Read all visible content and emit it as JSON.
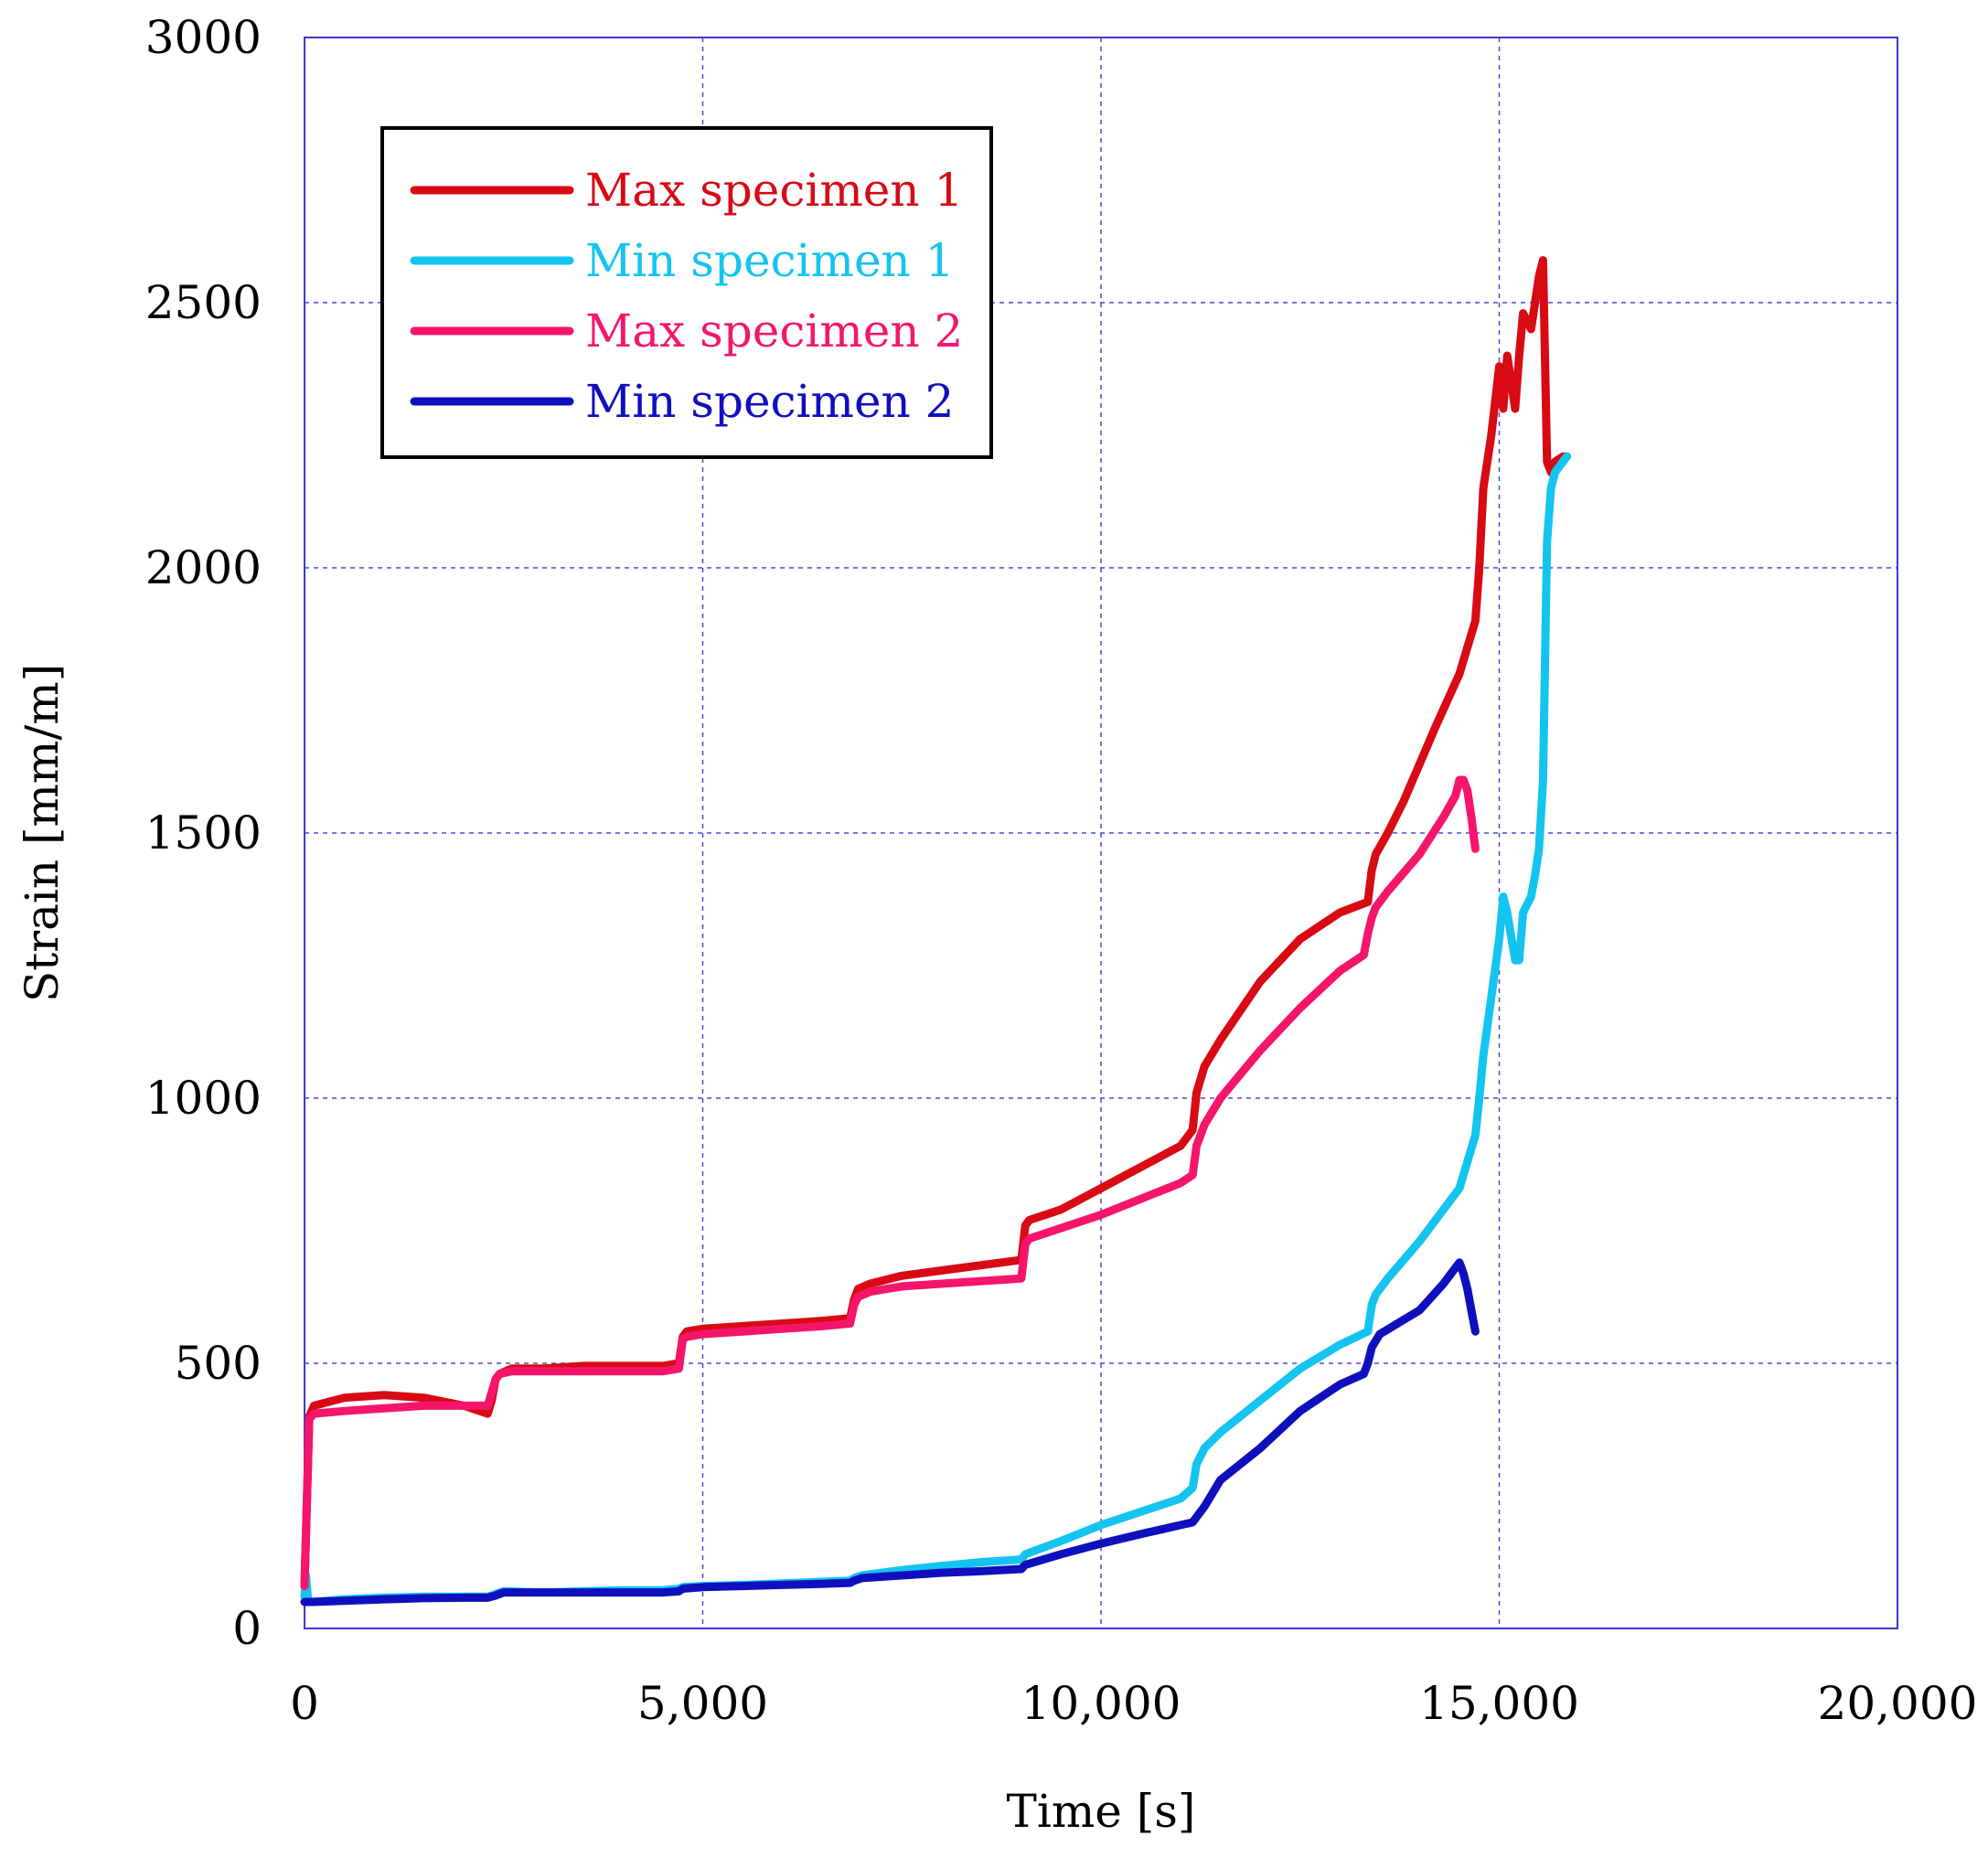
{
  "chart_data": {
    "type": "line",
    "xlabel": "Time [s]",
    "ylabel": "Strain [mm/m]",
    "xlim": [
      0,
      20000
    ],
    "ylim": [
      0,
      3000
    ],
    "x_ticks": [
      {
        "value": 0,
        "label": "0"
      },
      {
        "value": 5000,
        "label": "5,000"
      },
      {
        "value": 10000,
        "label": "10,000"
      },
      {
        "value": 15000,
        "label": "15,000"
      },
      {
        "value": 20000,
        "label": "20,000"
      }
    ],
    "y_ticks": [
      {
        "value": 0,
        "label": "0"
      },
      {
        "value": 500,
        "label": "500"
      },
      {
        "value": 1000,
        "label": "1000"
      },
      {
        "value": 1500,
        "label": "1500"
      },
      {
        "value": 2000,
        "label": "2000"
      },
      {
        "value": 2500,
        "label": "2500"
      },
      {
        "value": 3000,
        "label": "3000"
      }
    ],
    "grid": true,
    "legend_position": "top-left",
    "series": [
      {
        "name": "Max specimen 1",
        "color": "#d80a14",
        "x": [
          0,
          60,
          120,
          500,
          1000,
          1500,
          2000,
          2300,
          2350,
          2400,
          2450,
          2600,
          3000,
          3500,
          4000,
          4500,
          4700,
          4750,
          4800,
          5000,
          5500,
          6000,
          6500,
          6850,
          6900,
          6950,
          7100,
          7500,
          8000,
          8500,
          9000,
          9050,
          9100,
          9500,
          10000,
          10500,
          11000,
          11150,
          11200,
          11300,
          11500,
          12000,
          12500,
          13000,
          13350,
          13400,
          13450,
          13600,
          13800,
          14000,
          14200,
          14500,
          14700,
          14750,
          14800,
          14900,
          15000,
          15050,
          15100,
          15150,
          15200,
          15250,
          15300,
          15400,
          15500,
          15550,
          15600,
          15650,
          15700,
          15800,
          15850
        ],
        "values": [
          80,
          400,
          420,
          435,
          440,
          435,
          420,
          405,
          430,
          470,
          480,
          490,
          490,
          495,
          495,
          495,
          500,
          550,
          560,
          565,
          570,
          575,
          580,
          585,
          620,
          640,
          650,
          665,
          675,
          685,
          695,
          760,
          770,
          790,
          830,
          870,
          910,
          940,
          1010,
          1060,
          1110,
          1220,
          1300,
          1350,
          1370,
          1430,
          1460,
          1500,
          1560,
          1630,
          1700,
          1800,
          1900,
          2000,
          2150,
          2250,
          2380,
          2300,
          2400,
          2350,
          2300,
          2400,
          2480,
          2450,
          2550,
          2580,
          2200,
          2180,
          2200,
          2210,
          2210
        ]
      },
      {
        "name": "Min specimen 1",
        "color": "#14c4f0",
        "x": [
          0,
          20,
          40,
          60,
          100,
          500,
          1000,
          1500,
          2000,
          2300,
          2350,
          2400,
          2500,
          3000,
          3500,
          4000,
          4500,
          4700,
          4750,
          5000,
          5500,
          6000,
          6500,
          6850,
          6900,
          7000,
          7500,
          8000,
          8500,
          9000,
          9050,
          9500,
          10000,
          10500,
          11000,
          11150,
          11200,
          11300,
          11500,
          12000,
          12500,
          13000,
          13350,
          13400,
          13450,
          13600,
          14000,
          14500,
          14700,
          14750,
          14800,
          14900,
          15000,
          15050,
          15100,
          15200,
          15250,
          15300,
          15400,
          15450,
          15500,
          15550,
          15600,
          15650,
          15700,
          15800,
          15850
        ],
        "values": [
          60,
          100,
          60,
          50,
          50,
          55,
          58,
          60,
          60,
          60,
          62,
          65,
          70,
          68,
          70,
          72,
          72,
          75,
          78,
          80,
          82,
          85,
          88,
          90,
          95,
          100,
          110,
          118,
          125,
          130,
          140,
          165,
          195,
          220,
          245,
          265,
          310,
          340,
          370,
          430,
          490,
          535,
          560,
          610,
          630,
          660,
          730,
          830,
          930,
          1000,
          1080,
          1190,
          1300,
          1380,
          1350,
          1260,
          1260,
          1350,
          1380,
          1420,
          1470,
          1600,
          2050,
          2150,
          2180,
          2200,
          2210
        ]
      },
      {
        "name": "Max specimen 2",
        "color": "#f5166b",
        "x": [
          0,
          60,
          120,
          500,
          1000,
          1500,
          2000,
          2300,
          2350,
          2400,
          2450,
          2600,
          3000,
          3500,
          4000,
          4500,
          4700,
          4750,
          4800,
          5000,
          5500,
          6000,
          6500,
          6850,
          6900,
          6950,
          7100,
          7500,
          8000,
          8500,
          9000,
          9050,
          9100,
          9500,
          10000,
          10500,
          11000,
          11150,
          11200,
          11300,
          11500,
          12000,
          12500,
          13000,
          13300,
          13350,
          13400,
          13450,
          13600,
          14000,
          14300,
          14450,
          14500,
          14550,
          14600,
          14650,
          14700
        ],
        "values": [
          80,
          395,
          405,
          410,
          415,
          420,
          420,
          420,
          445,
          470,
          480,
          485,
          485,
          485,
          485,
          485,
          490,
          545,
          550,
          555,
          560,
          565,
          570,
          575,
          610,
          625,
          635,
          645,
          650,
          655,
          660,
          725,
          735,
          755,
          780,
          810,
          840,
          855,
          910,
          950,
          1000,
          1090,
          1170,
          1240,
          1270,
          1310,
          1340,
          1360,
          1390,
          1460,
          1530,
          1570,
          1600,
          1600,
          1580,
          1530,
          1470
        ]
      },
      {
        "name": "Min specimen 2",
        "color": "#0f0fbe",
        "x": [
          0,
          100,
          500,
          1000,
          1500,
          2000,
          2300,
          2350,
          2400,
          2500,
          3000,
          3500,
          4000,
          4500,
          4700,
          4750,
          5000,
          5500,
          6000,
          6500,
          6850,
          6900,
          7000,
          7500,
          8000,
          8500,
          9000,
          9050,
          9500,
          10000,
          10500,
          11000,
          11150,
          11200,
          11300,
          11500,
          12000,
          12500,
          13000,
          13300,
          13350,
          13400,
          13500,
          14000,
          14300,
          14450,
          14500,
          14550,
          14600,
          14650,
          14700
        ],
        "values": [
          50,
          50,
          52,
          55,
          57,
          58,
          58,
          60,
          62,
          68,
          68,
          68,
          68,
          68,
          70,
          75,
          78,
          80,
          82,
          84,
          86,
          90,
          95,
          100,
          105,
          108,
          112,
          120,
          140,
          160,
          178,
          195,
          200,
          210,
          230,
          280,
          340,
          410,
          460,
          480,
          500,
          530,
          555,
          600,
          650,
          680,
          690,
          670,
          640,
          600,
          560
        ]
      }
    ]
  }
}
